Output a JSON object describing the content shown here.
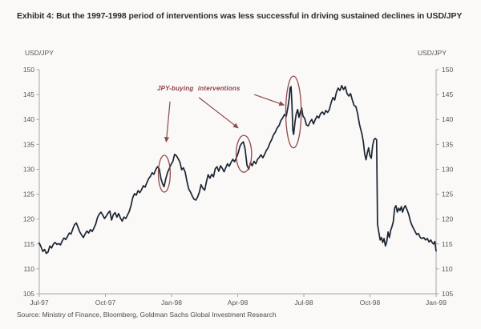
{
  "header": {
    "title": "Exhibit 4: But the 1997-1998 period of interventions was less successful in driving sustained declines in USD/JPY"
  },
  "axes": {
    "left_unit_label": "USD/JPY",
    "right_unit_label": "USD/JPY"
  },
  "annotation": {
    "label": "JPY-buying interventions"
  },
  "source": {
    "text": "Source: Ministry of Finance, Bloomberg, Goldman Sachs Global Investment Research"
  },
  "colors": {
    "line": "#1b2433",
    "annotation": "#8d4a4e",
    "annotation_text": "#8d3f48",
    "axis": "#a8a8a8",
    "tick_text": "#565658",
    "title_text": "#2c2c31"
  },
  "chart_data": {
    "type": "line",
    "title": "USD/JPY, Jul-97 to Jan-99, with JPY-buying interventions circled",
    "xlabel": "",
    "ylabel": "USD/JPY",
    "ylim": [
      105,
      150
    ],
    "xlim_months": [
      0,
      18
    ],
    "grid": false,
    "legend": null,
    "y_ticks": [
      105,
      110,
      115,
      120,
      125,
      130,
      135,
      140,
      145,
      150
    ],
    "x_tick_months": [
      0,
      3,
      6,
      9,
      12,
      15,
      18
    ],
    "x_tick_labels": [
      "Jul-97",
      "Oct-97",
      "Jan-98",
      "Apr-98",
      "Jul-98",
      "Oct-98",
      "Jan-99"
    ],
    "series": [
      {
        "name": "USD/JPY",
        "points": [
          [
            0.0,
            115.2
          ],
          [
            0.08,
            114.4
          ],
          [
            0.16,
            113.5
          ],
          [
            0.24,
            113.9
          ],
          [
            0.32,
            113.1
          ],
          [
            0.4,
            113.4
          ],
          [
            0.48,
            114.6
          ],
          [
            0.56,
            114.2
          ],
          [
            0.64,
            115.0
          ],
          [
            0.72,
            115.3
          ],
          [
            0.8,
            114.9
          ],
          [
            0.88,
            115.1
          ],
          [
            0.96,
            114.8
          ],
          [
            1.04,
            115.6
          ],
          [
            1.12,
            116.2
          ],
          [
            1.2,
            115.9
          ],
          [
            1.28,
            116.5
          ],
          [
            1.36,
            117.2
          ],
          [
            1.44,
            117.0
          ],
          [
            1.52,
            118.0
          ],
          [
            1.6,
            118.9
          ],
          [
            1.68,
            119.2
          ],
          [
            1.76,
            118.3
          ],
          [
            1.84,
            117.4
          ],
          [
            1.92,
            116.8
          ],
          [
            2.0,
            116.3
          ],
          [
            2.08,
            117.0
          ],
          [
            2.16,
            117.6
          ],
          [
            2.24,
            117.2
          ],
          [
            2.32,
            117.9
          ],
          [
            2.4,
            117.5
          ],
          [
            2.48,
            118.2
          ],
          [
            2.56,
            119.0
          ],
          [
            2.64,
            120.3
          ],
          [
            2.72,
            121.0
          ],
          [
            2.8,
            121.4
          ],
          [
            2.88,
            120.8
          ],
          [
            2.96,
            120.1
          ],
          [
            3.04,
            120.6
          ],
          [
            3.12,
            121.2
          ],
          [
            3.2,
            121.6
          ],
          [
            3.28,
            119.8
          ],
          [
            3.36,
            120.9
          ],
          [
            3.44,
            121.3
          ],
          [
            3.52,
            120.4
          ],
          [
            3.6,
            121.1
          ],
          [
            3.68,
            120.2
          ],
          [
            3.76,
            119.6
          ],
          [
            3.84,
            120.4
          ],
          [
            3.92,
            120.1
          ],
          [
            4.0,
            120.8
          ],
          [
            4.08,
            121.5
          ],
          [
            4.16,
            122.7
          ],
          [
            4.24,
            124.3
          ],
          [
            4.32,
            125.1
          ],
          [
            4.4,
            124.8
          ],
          [
            4.48,
            125.7
          ],
          [
            4.56,
            125.3
          ],
          [
            4.64,
            125.9
          ],
          [
            4.72,
            126.7
          ],
          [
            4.8,
            126.4
          ],
          [
            4.88,
            127.3
          ],
          [
            4.96,
            128.1
          ],
          [
            5.04,
            128.6
          ],
          [
            5.12,
            129.3
          ],
          [
            5.2,
            129.0
          ],
          [
            5.28,
            129.9
          ],
          [
            5.36,
            130.5
          ],
          [
            5.44,
            130.1
          ],
          [
            5.52,
            128.1
          ],
          [
            5.6,
            127.0
          ],
          [
            5.66,
            126.5
          ],
          [
            5.74,
            128.1
          ],
          [
            5.82,
            129.4
          ],
          [
            5.9,
            130.2
          ],
          [
            5.98,
            131.0
          ],
          [
            6.06,
            131.6
          ],
          [
            6.14,
            133.0
          ],
          [
            6.22,
            132.7
          ],
          [
            6.3,
            132.1
          ],
          [
            6.38,
            131.4
          ],
          [
            6.46,
            129.9
          ],
          [
            6.54,
            130.3
          ],
          [
            6.62,
            129.4
          ],
          [
            6.7,
            127.5
          ],
          [
            6.78,
            126.0
          ],
          [
            6.86,
            125.4
          ],
          [
            6.94,
            124.6
          ],
          [
            7.02,
            124.0
          ],
          [
            7.1,
            123.8
          ],
          [
            7.18,
            124.4
          ],
          [
            7.26,
            125.4
          ],
          [
            7.34,
            126.9
          ],
          [
            7.42,
            126.2
          ],
          [
            7.5,
            125.8
          ],
          [
            7.58,
            127.4
          ],
          [
            7.66,
            128.9
          ],
          [
            7.74,
            128.2
          ],
          [
            7.82,
            129.0
          ],
          [
            7.9,
            128.5
          ],
          [
            7.98,
            130.1
          ],
          [
            8.06,
            130.5
          ],
          [
            8.14,
            129.6
          ],
          [
            8.22,
            130.7
          ],
          [
            8.3,
            130.2
          ],
          [
            8.38,
            129.5
          ],
          [
            8.46,
            130.3
          ],
          [
            8.54,
            131.1
          ],
          [
            8.62,
            130.6
          ],
          [
            8.7,
            131.4
          ],
          [
            8.78,
            132.0
          ],
          [
            8.86,
            131.5
          ],
          [
            8.94,
            132.3
          ],
          [
            9.02,
            133.2
          ],
          [
            9.1,
            134.6
          ],
          [
            9.18,
            135.2
          ],
          [
            9.26,
            135.5
          ],
          [
            9.34,
            134.0
          ],
          [
            9.42,
            130.8
          ],
          [
            9.5,
            130.0
          ],
          [
            9.58,
            131.3
          ],
          [
            9.66,
            130.7
          ],
          [
            9.74,
            131.6
          ],
          [
            9.82,
            131.1
          ],
          [
            9.9,
            132.0
          ],
          [
            9.98,
            132.4
          ],
          [
            10.06,
            132.9
          ],
          [
            10.14,
            132.3
          ],
          [
            10.22,
            133.0
          ],
          [
            10.3,
            133.8
          ],
          [
            10.38,
            134.3
          ],
          [
            10.46,
            135.3
          ],
          [
            10.54,
            135.9
          ],
          [
            10.62,
            136.9
          ],
          [
            10.7,
            137.4
          ],
          [
            10.78,
            138.2
          ],
          [
            10.88,
            138.8
          ],
          [
            10.96,
            139.8
          ],
          [
            11.04,
            140.3
          ],
          [
            11.12,
            141.0
          ],
          [
            11.2,
            140.6
          ],
          [
            11.28,
            142.5
          ],
          [
            11.34,
            144.4
          ],
          [
            11.38,
            146.3
          ],
          [
            11.42,
            146.6
          ],
          [
            11.46,
            143.0
          ],
          [
            11.5,
            137.8
          ],
          [
            11.54,
            137.0
          ],
          [
            11.6,
            139.5
          ],
          [
            11.66,
            141.2
          ],
          [
            11.72,
            142.0
          ],
          [
            11.78,
            140.4
          ],
          [
            11.84,
            141.5
          ],
          [
            11.9,
            142.3
          ],
          [
            11.96,
            140.7
          ],
          [
            12.04,
            140.2
          ],
          [
            12.12,
            138.9
          ],
          [
            12.2,
            138.7
          ],
          [
            12.28,
            139.5
          ],
          [
            12.36,
            140.0
          ],
          [
            12.44,
            139.1
          ],
          [
            12.52,
            140.0
          ],
          [
            12.6,
            140.7
          ],
          [
            12.68,
            140.3
          ],
          [
            12.76,
            141.2
          ],
          [
            12.84,
            141.5
          ],
          [
            12.92,
            141.0
          ],
          [
            13.0,
            141.8
          ],
          [
            13.08,
            141.4
          ],
          [
            13.16,
            142.0
          ],
          [
            13.24,
            143.4
          ],
          [
            13.32,
            144.4
          ],
          [
            13.4,
            143.9
          ],
          [
            13.48,
            145.5
          ],
          [
            13.56,
            146.3
          ],
          [
            13.64,
            145.8
          ],
          [
            13.72,
            146.8
          ],
          [
            13.8,
            146.0
          ],
          [
            13.88,
            146.6
          ],
          [
            13.96,
            145.2
          ],
          [
            14.04,
            144.7
          ],
          [
            14.12,
            145.2
          ],
          [
            14.2,
            143.9
          ],
          [
            14.28,
            142.8
          ],
          [
            14.36,
            142.6
          ],
          [
            14.44,
            141.2
          ],
          [
            14.52,
            139.1
          ],
          [
            14.58,
            138.0
          ],
          [
            14.64,
            137.0
          ],
          [
            14.7,
            135.4
          ],
          [
            14.76,
            133.1
          ],
          [
            14.82,
            131.9
          ],
          [
            14.88,
            133.3
          ],
          [
            14.94,
            134.3
          ],
          [
            15.0,
            132.7
          ],
          [
            15.06,
            132.2
          ],
          [
            15.12,
            134.7
          ],
          [
            15.18,
            135.9
          ],
          [
            15.24,
            136.2
          ],
          [
            15.3,
            135.9
          ],
          [
            15.34,
            119.0
          ],
          [
            15.4,
            117.4
          ],
          [
            15.46,
            115.8
          ],
          [
            15.52,
            116.3
          ],
          [
            15.58,
            115.3
          ],
          [
            15.64,
            116.1
          ],
          [
            15.7,
            114.6
          ],
          [
            15.76,
            115.4
          ],
          [
            15.82,
            117.4
          ],
          [
            15.88,
            116.3
          ],
          [
            15.94,
            117.7
          ],
          [
            16.0,
            118.5
          ],
          [
            16.06,
            119.5
          ],
          [
            16.12,
            122.2
          ],
          [
            16.18,
            122.7
          ],
          [
            16.24,
            121.4
          ],
          [
            16.3,
            122.2
          ],
          [
            16.36,
            121.7
          ],
          [
            16.42,
            122.5
          ],
          [
            16.48,
            121.4
          ],
          [
            16.54,
            122.2
          ],
          [
            16.6,
            122.7
          ],
          [
            16.7,
            121.7
          ],
          [
            16.76,
            120.9
          ],
          [
            16.84,
            119.5
          ],
          [
            16.92,
            118.6
          ],
          [
            17.0,
            117.9
          ],
          [
            17.06,
            117.4
          ],
          [
            17.12,
            116.9
          ],
          [
            17.2,
            117.1
          ],
          [
            17.28,
            116.3
          ],
          [
            17.36,
            116.1
          ],
          [
            17.44,
            116.3
          ],
          [
            17.52,
            115.8
          ],
          [
            17.6,
            116.1
          ],
          [
            17.68,
            115.4
          ],
          [
            17.76,
            115.8
          ],
          [
            17.82,
            115.3
          ],
          [
            17.88,
            115.0
          ],
          [
            17.94,
            115.5
          ],
          [
            18.0,
            113.6
          ]
        ]
      }
    ],
    "annotations": {
      "label": "JPY-buying interventions",
      "ellipses": [
        {
          "name": "intervention-dec-97",
          "month": 5.67,
          "value": 129.1,
          "r_month": 0.27,
          "r_value": 3.7
        },
        {
          "name": "intervention-apr-98",
          "month": 9.28,
          "value": 133.1,
          "r_month": 0.35,
          "r_value": 3.7
        },
        {
          "name": "intervention-jun-98",
          "month": 11.53,
          "value": 141.5,
          "r_month": 0.35,
          "r_value": 7.2
        }
      ],
      "arrows": [
        {
          "from": [
            5.93,
            143.6
          ],
          "to": [
            5.76,
            135.5
          ]
        },
        {
          "from": [
            7.24,
            144.4
          ],
          "to": [
            9.02,
            138.3
          ]
        },
        {
          "from": [
            9.75,
            145.0
          ],
          "to": [
            11.1,
            142.9
          ]
        }
      ]
    }
  }
}
